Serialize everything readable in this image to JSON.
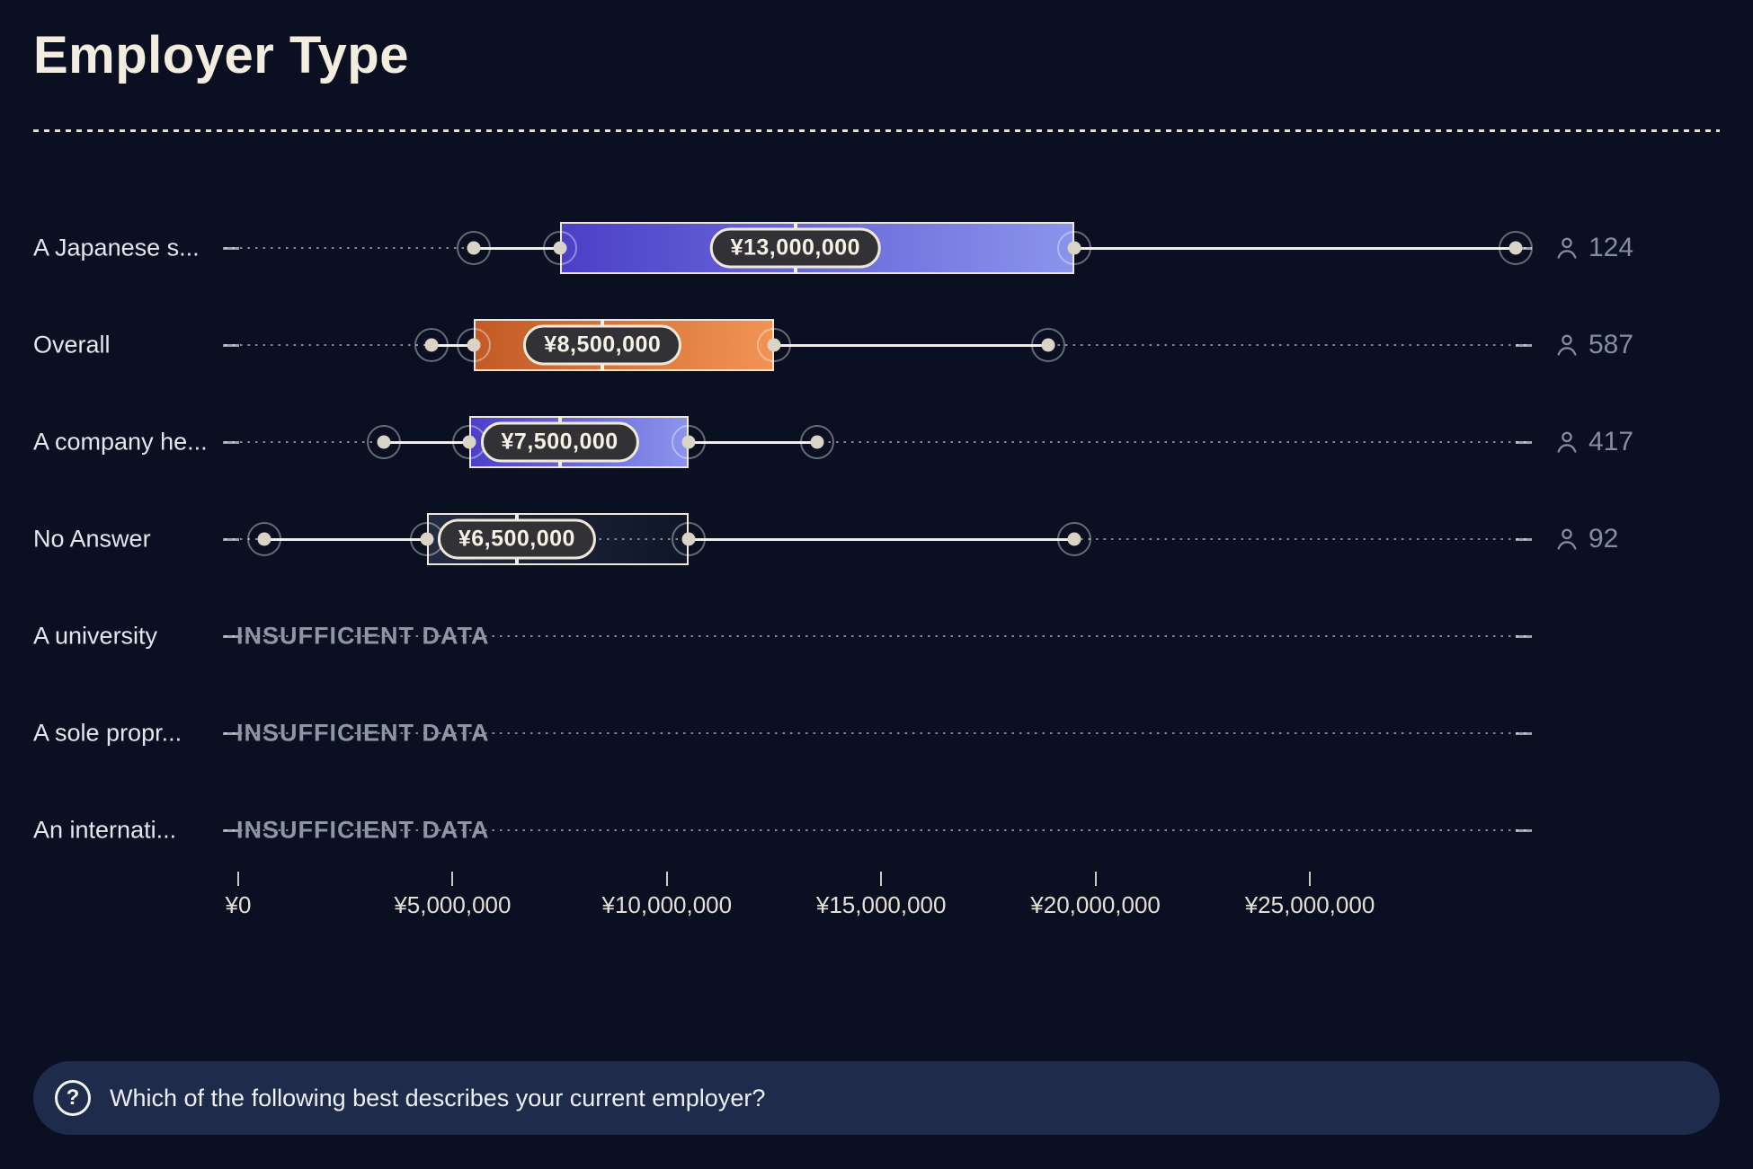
{
  "title": "Employer Type",
  "colors": {
    "background": "#0a1021",
    "cream_text": "#f2edde",
    "muted_text": "#858da0",
    "indigo_gradient_left": "#4b40c7",
    "indigo_gradient_right": "#8a94ec",
    "orange_gradient_left": "#c25a26",
    "orange_gradient_right": "#f29354",
    "footer_bar": "#1e2b4a",
    "tooltip_bg": "#313136",
    "tooltip_border": "#efe8d8"
  },
  "chart_data": {
    "type": "box",
    "orientation": "horizontal",
    "currency": "JPY",
    "insufficient_label": "INSUFFICIENT DATA",
    "axis": {
      "ticks": [
        {
          "label": "¥0",
          "value": 0
        },
        {
          "label": "¥5,000,000",
          "value": 5000000
        },
        {
          "label": "¥10,000,000",
          "value": 10000000
        },
        {
          "label": "¥15,000,000",
          "value": 15000000
        },
        {
          "label": "¥20,000,000",
          "value": 20000000
        },
        {
          "label": "¥25,000,000",
          "value": 25000000
        }
      ],
      "range_shown": [
        0,
        30000000
      ],
      "grid": false
    },
    "rows": [
      {
        "label": "A Japanese s...",
        "palette": "indigo",
        "count": "124",
        "median_label": "¥13,000,000",
        "p10": 5500000,
        "p25": 7500000,
        "median": 13000000,
        "p75": 19500000,
        "p90": 29800000
      },
      {
        "label": "Overall",
        "palette": "orange",
        "count": "587",
        "median_label": "¥8,500,000",
        "p10": 4500000,
        "p25": 5500000,
        "median": 8500000,
        "p75": 12500000,
        "p90": 18900000
      },
      {
        "label": "A company he...",
        "palette": "indigo",
        "count": "417",
        "median_label": "¥7,500,000",
        "p10": 3400000,
        "p25": 5400000,
        "median": 7500000,
        "p75": 10500000,
        "p90": 13500000
      },
      {
        "label": "No Answer",
        "palette": "ghost",
        "count": "92",
        "median_label": "¥6,500,000",
        "p10": 600000,
        "p25": 4400000,
        "median": 6500000,
        "p75": 10500000,
        "p90": 19500000
      },
      {
        "label": "A university",
        "insufficient": true
      },
      {
        "label": "A sole propr...",
        "insufficient": true
      },
      {
        "label": "An internati...",
        "insufficient": true
      }
    ]
  },
  "footer": {
    "question": "Which of the following best describes your current employer?"
  }
}
